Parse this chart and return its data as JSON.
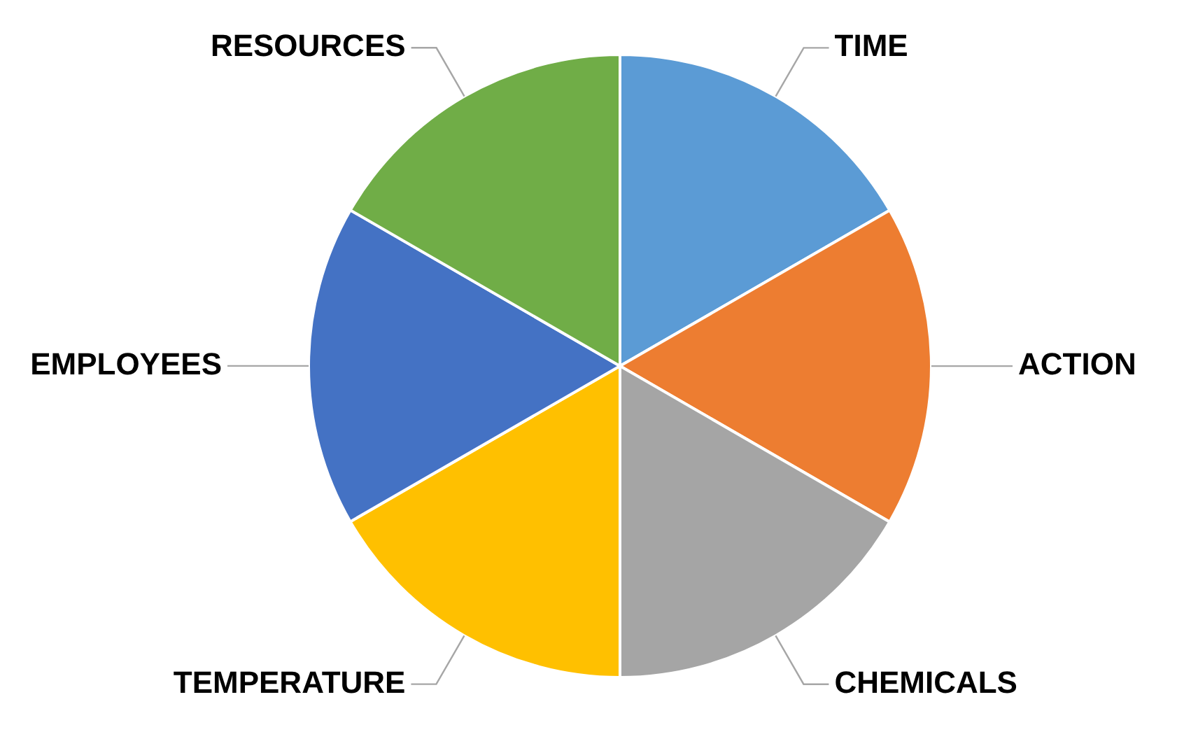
{
  "chart_data": {
    "type": "pie",
    "categories": [
      "TIME",
      "ACTION",
      "CHEMICALS",
      "TEMPERATURE",
      "EMPLOYEES",
      "RESOURCES"
    ],
    "values": [
      16.67,
      16.67,
      16.66,
      16.67,
      16.67,
      16.66
    ],
    "colors": [
      "#5b9bd5",
      "#ed7d31",
      "#a5a5a5",
      "#ffc000",
      "#4472c4",
      "#70ad47"
    ],
    "legend": false
  }
}
